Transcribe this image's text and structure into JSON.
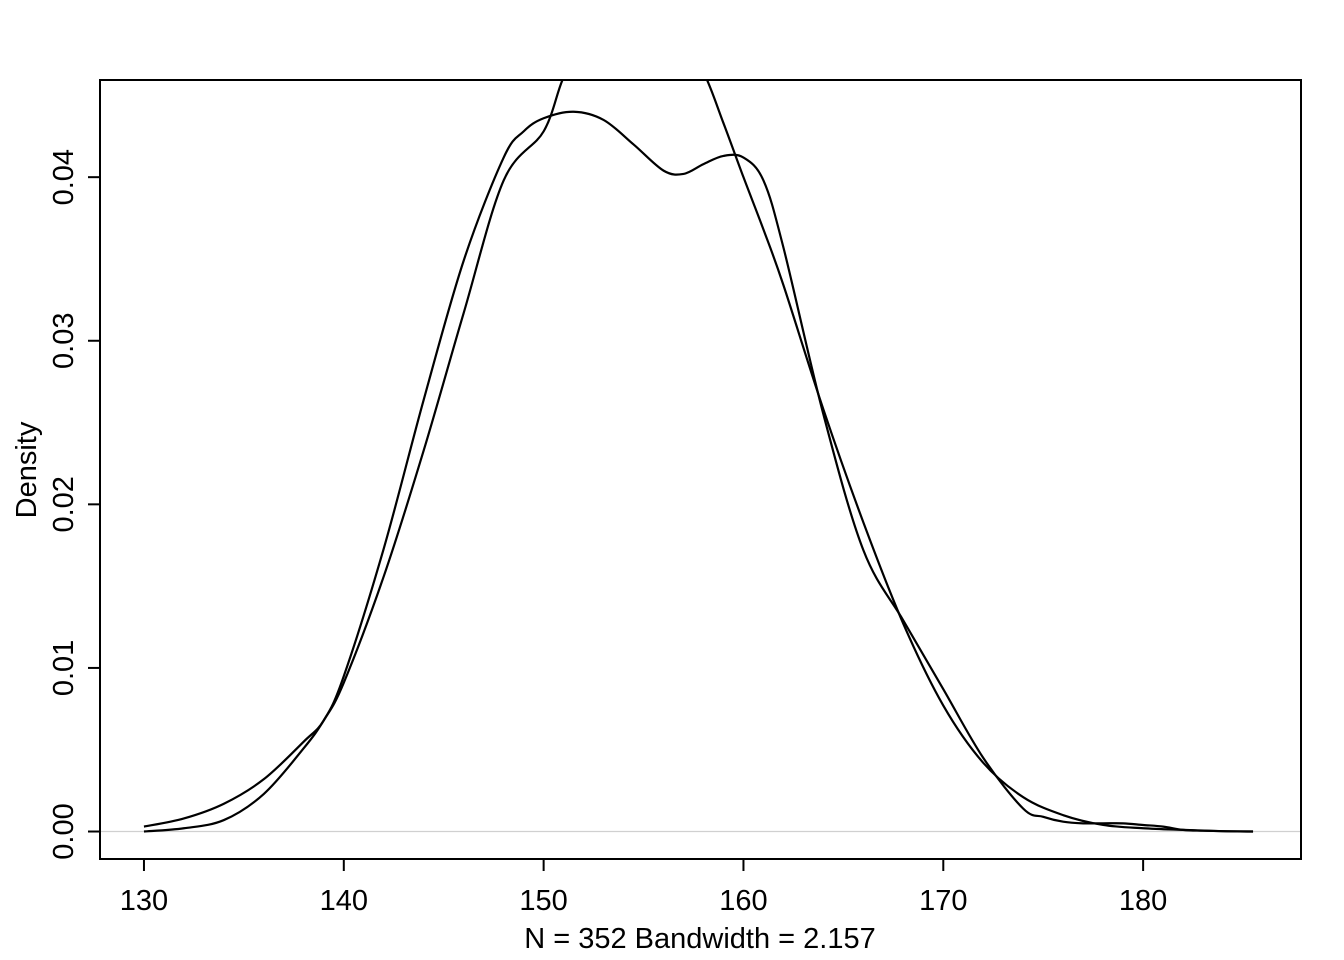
{
  "chart_data": {
    "type": "line",
    "title": "",
    "xlabel": "N = 352   Bandwidth = 2.157",
    "ylabel": "Density",
    "xlim": [
      127.8,
      187.9
    ],
    "ylim": [
      -0.00168,
      0.04594
    ],
    "xticks": [
      130,
      140,
      150,
      160,
      170,
      180
    ],
    "xtick_labels": [
      "130",
      "140",
      "150",
      "160",
      "170",
      "180"
    ],
    "yticks": [
      0.0,
      0.01,
      0.02,
      0.03,
      0.04
    ],
    "ytick_labels": [
      "0.00",
      "0.01",
      "0.02",
      "0.03",
      "0.04"
    ],
    "zero_line": true,
    "grid": false,
    "legend": "none",
    "colors": {
      "line": "#000000",
      "frame": "#000000",
      "zero_line": "#d0d0d0"
    },
    "series": [
      {
        "x": [
          130.0,
          132.0,
          134.0,
          136.0,
          138.0,
          139.0,
          140.0,
          142.0,
          144.0,
          146.0,
          148.0,
          149.0,
          150.0,
          151.5,
          153.0,
          154.5,
          156.0,
          157.0,
          158.0,
          159.0,
          160.0,
          161.0,
          162.0,
          164.0,
          166.0,
          168.0,
          170.0,
          172.0,
          174.0,
          175.0,
          176.0,
          177.0,
          178.0,
          179.0,
          180.0,
          181.0,
          182.0,
          183.0,
          184.0,
          185.5
        ],
        "y": [
          0.0003,
          0.0008,
          0.0017,
          0.0032,
          0.0055,
          0.0068,
          0.0095,
          0.0173,
          0.0264,
          0.0349,
          0.0412,
          0.0428,
          0.0436,
          0.044,
          0.0435,
          0.042,
          0.0404,
          0.0402,
          0.0408,
          0.0413,
          0.0412,
          0.0398,
          0.0357,
          0.0255,
          0.0172,
          0.0129,
          0.0087,
          0.0045,
          0.0014,
          0.0009,
          0.0006,
          0.0005,
          0.0005,
          0.0005,
          0.0004,
          0.0003,
          0.0001,
          5e-05,
          2e-05,
          0.0
        ]
      },
      {
        "x": [
          130.0,
          132.0,
          134.0,
          136.0,
          138.0,
          139.0,
          140.0,
          142.0,
          144.0,
          146.0,
          148.0,
          150.0,
          151.0,
          152.0,
          153.0,
          154.0,
          154.6,
          155.0,
          156.0,
          157.0,
          158.0,
          159.0,
          160.0,
          161.0,
          162.0,
          164.0,
          166.0,
          168.0,
          170.0,
          172.0,
          174.0,
          176.0,
          178.0,
          180.0,
          182.0,
          184.0,
          185.5
        ],
        "y": [
          0.0,
          0.0002,
          0.0007,
          0.0023,
          0.0051,
          0.0068,
          0.0091,
          0.0156,
          0.0233,
          0.0317,
          0.0398,
          0.0428,
          0.0461,
          0.0478,
          0.0487,
          0.049,
          0.049,
          0.049,
          0.0487,
          0.0478,
          0.0464,
          0.0433,
          0.04,
          0.0368,
          0.0334,
          0.0258,
          0.0189,
          0.0127,
          0.0077,
          0.0042,
          0.0021,
          0.001,
          0.0004,
          0.0002,
          0.0001,
          2e-05,
          0.0
        ]
      }
    ]
  }
}
